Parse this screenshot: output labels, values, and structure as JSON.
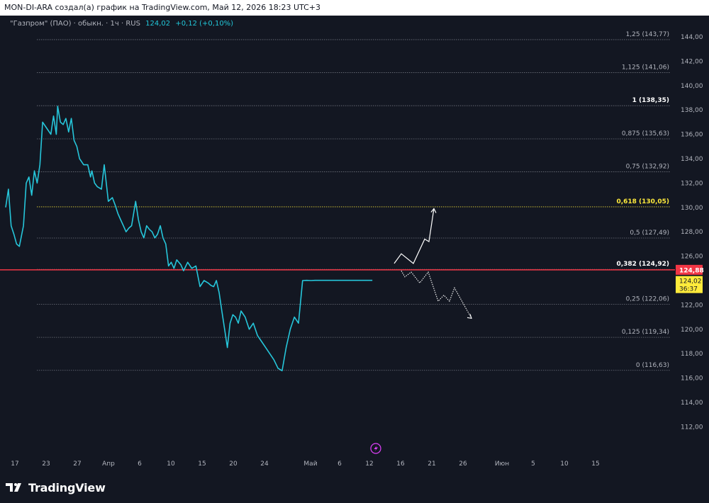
{
  "header": {
    "attribution": "MON-DI-ARA создал(а) график на TradingView.com, Май 12, 2026 18:23 UTC+3"
  },
  "legend": {
    "description": "\"Газпром\" (ПАО) · обыкн. · 1ч · RUS",
    "price": "124,02",
    "change": "+0,12 (+0,10%)"
  },
  "branding": {
    "logo_text": "TradingView"
  },
  "colors": {
    "background": "#131722",
    "price_line": "#26c6da",
    "horizontal_line": "#f23645",
    "fib_line": "#9598a1",
    "fib_highlight": "#ffeb3b",
    "projection": "#ffffff",
    "axis_text": "#b2b5be",
    "lightning_icon": "#e040fb"
  },
  "chart_data": {
    "type": "line",
    "title": "\"Газпром\" (ПАО) · обыкн. · 1ч · RUS",
    "series": [
      {
        "values_note": "hourly close, approximated",
        "x": [
          0,
          2,
          4,
          6,
          8,
          10,
          13,
          15,
          17,
          19,
          21,
          23,
          25,
          27,
          30,
          33,
          35,
          37,
          38,
          40,
          42,
          44,
          46,
          48,
          50,
          52,
          54,
          57,
          60,
          62,
          63,
          65,
          67,
          70,
          72,
          75,
          78,
          80,
          82,
          84,
          86,
          88,
          90,
          92,
          95,
          97,
          99,
          101,
          103,
          105,
          107,
          109,
          111,
          113,
          115,
          117,
          119,
          121,
          123,
          125,
          128,
          130,
          133,
          136,
          139,
          142,
          145,
          148,
          150,
          152,
          154,
          156,
          158,
          160,
          162,
          164,
          166,
          168,
          170,
          172,
          175,
          178,
          181,
          184,
          187,
          190,
          193,
          196,
          199,
          202,
          205,
          208,
          211,
          214,
          217,
          220,
          223,
          226,
          229,
          232,
          235,
          238,
          241,
          244,
          247,
          250,
          253,
          256,
          259,
          262,
          265,
          268
        ],
        "y": [
          130.0,
          131.5,
          128.5,
          127.8,
          127.0,
          126.8,
          128.5,
          132.0,
          132.5,
          131.0,
          133.0,
          132.0,
          133.5,
          137.0,
          136.5,
          136.0,
          137.5,
          136.0,
          138.3,
          137.0,
          136.8,
          137.3,
          136.2,
          137.3,
          135.5,
          135.0,
          134.0,
          133.5,
          133.5,
          132.5,
          133.0,
          132.0,
          131.7,
          131.5,
          133.5,
          130.5,
          130.8,
          130.2,
          129.5,
          129.0,
          128.5,
          128.0,
          128.3,
          128.5,
          130.5,
          129.0,
          128.0,
          127.5,
          128.5,
          128.2,
          128.0,
          127.5,
          127.8,
          128.5,
          127.5,
          127.0,
          125.2,
          125.5,
          125.0,
          125.7,
          125.3,
          124.8,
          125.5,
          125.0,
          125.2,
          123.5,
          124.0,
          123.8,
          123.6,
          123.5,
          124.0,
          123.0,
          121.5,
          120.0,
          118.5,
          120.5,
          121.2,
          121.0,
          120.5,
          121.5,
          121.0,
          120.0,
          120.5,
          119.5,
          119.0,
          118.5,
          118.0,
          117.5,
          116.8,
          116.6,
          118.5,
          120.0,
          121.0,
          120.5,
          124.0,
          124.02,
          124.0,
          124.02,
          124.02,
          124.02,
          124.02,
          124.02,
          124.02,
          124.02,
          124.02,
          124.02,
          124.02,
          124.02,
          124.02,
          124.02,
          124.02,
          124.02
        ]
      }
    ],
    "x_tick_labels": [
      "17",
      "23",
      "27",
      "Апр",
      "6",
      "10",
      "15",
      "20",
      "24",
      "Май",
      "6",
      "12",
      "16",
      "21",
      "26",
      "Июн",
      "5",
      "10",
      "15"
    ],
    "y_tick_labels": [
      "144,00",
      "142,00",
      "140,00",
      "138,00",
      "136,00",
      "134,00",
      "132,00",
      "130,00",
      "128,00",
      "126,00",
      "124,00",
      "122,00",
      "120,00",
      "118,00",
      "116,00",
      "114,00",
      "112,00"
    ],
    "ylim": [
      111.0,
      145.0
    ],
    "fib_levels": [
      {
        "ratio": "1,25",
        "price": 143.77,
        "label": "1,25 (143,77)"
      },
      {
        "ratio": "1,125",
        "price": 141.06,
        "label": "1,125 (141,06)"
      },
      {
        "ratio": "1",
        "price": 138.35,
        "label": "1 (138,35)"
      },
      {
        "ratio": "0,875",
        "price": 135.63,
        "label": "0,875 (135,63)"
      },
      {
        "ratio": "0,75",
        "price": 132.92,
        "label": "0,75 (132,92)"
      },
      {
        "ratio": "0,618",
        "price": 130.05,
        "label": "0,618 (130,05)"
      },
      {
        "ratio": "0,5",
        "price": 127.49,
        "label": "0,5 (127,49)"
      },
      {
        "ratio": "0,382",
        "price": 124.92,
        "label": "0,382 (124,92)"
      },
      {
        "ratio": "0,25",
        "price": 122.06,
        "label": "0,25 (122,06)"
      },
      {
        "ratio": "0,125",
        "price": 119.34,
        "label": "0,125 (119,34)"
      },
      {
        "ratio": "0",
        "price": 116.63,
        "label": "0 (116,63)"
      }
    ],
    "horizontal_line": {
      "price": 124.88,
      "label": "124,88"
    },
    "last_price_label": {
      "price": "124,02",
      "countdown": "36:37"
    },
    "projection_up": {
      "y": [
        125.4,
        126.2,
        125.4,
        127.4,
        127.2,
        129.9
      ]
    },
    "projection_down": {
      "y": [
        124.8,
        124.3,
        124.7,
        123.8,
        124.7,
        122.3,
        122.8,
        122.3,
        123.4,
        120.9
      ]
    }
  }
}
